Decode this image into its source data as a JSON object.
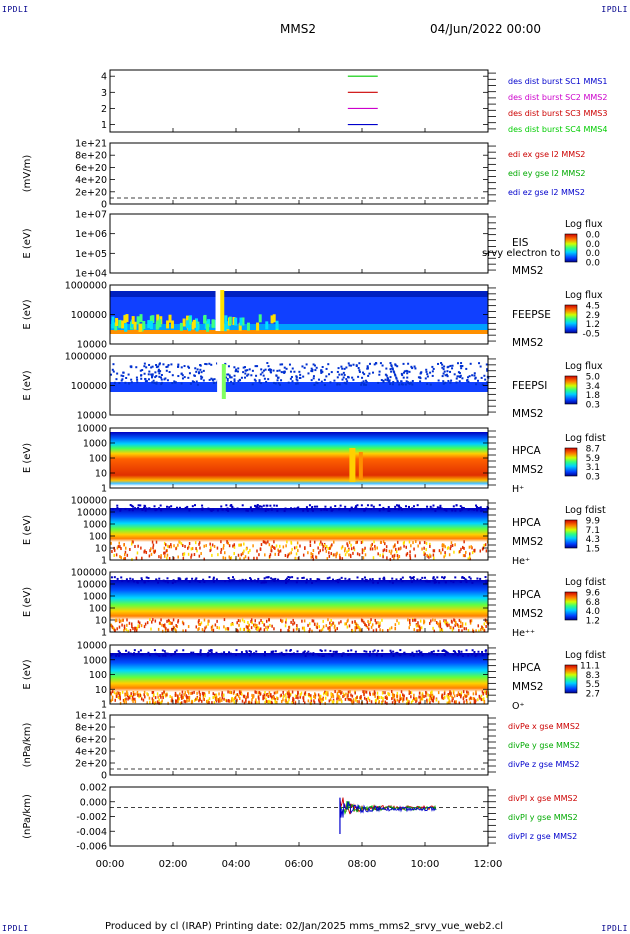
{
  "corners": {
    "tl": "IPDLI",
    "tr": "IPDLI",
    "bl": "IPDLI",
    "br": "IPDLI"
  },
  "header": {
    "spacecraft": "MMS2",
    "datetime": "04/Jun/2022 00:00"
  },
  "footer": {
    "text": "Produced by cl (IRAP)   Printing date: 02/Jan/2025   mms_mms2_srvy_vue_web2.cl"
  },
  "chart_data": {
    "type": "heatmap",
    "time_axis": {
      "ticks": [
        "00:00",
        "02:00",
        "04:00",
        "06:00",
        "08:00",
        "10:00",
        "12:00"
      ],
      "range_hours": [
        0,
        12
      ]
    },
    "panels": [
      {
        "id": "burst",
        "ylabel": "",
        "yticks": [
          "4",
          "3",
          "2",
          "1"
        ],
        "legend": [
          {
            "text": "des dist burst SC1 MMS1",
            "color": "#0000cc"
          },
          {
            "text": "des dist burst SC2 MMS2",
            "color": "#cc00cc"
          },
          {
            "text": "des dist burst SC3 MMS3",
            "color": "#cc0000"
          },
          {
            "text": "des dist burst SC4 MMS4",
            "color": "#00cc00"
          }
        ],
        "series": [
          {
            "y": 4,
            "x": [
              7.55,
              8.5
            ],
            "color": "#00cc00"
          },
          {
            "y": 3,
            "x": [
              7.55,
              8.5
            ],
            "color": "#cc0000"
          },
          {
            "y": 2,
            "x": [
              7.55,
              8.5
            ],
            "color": "#cc00cc"
          },
          {
            "y": 1,
            "x": [
              7.55,
              8.5
            ],
            "color": "#0000cc"
          }
        ]
      },
      {
        "id": "edi",
        "ylabel": "(mV/m)",
        "yticks": [
          "1e+21",
          "8e+20",
          "6e+20",
          "4e+20",
          "2e+20",
          "0"
        ],
        "legend": [
          {
            "text": "edi ex gse l2 MMS2",
            "color": "#cc0000"
          },
          {
            "text": "edi ey gse l2 MMS2",
            "color": "#00aa00"
          },
          {
            "text": "edi ez gse l2 MMS2",
            "color": "#0000cc"
          }
        ]
      },
      {
        "id": "eis",
        "ylabel": "E (eV)",
        "yticks": [
          "1e+07",
          "1e+06",
          "1e+05",
          "1e+04"
        ],
        "side_labels": [
          "EIS",
          "MMS2"
        ],
        "overlay_text": "srvy electron to",
        "colorbar": {
          "title": "Log flux",
          "ticks": [
            "0.0",
            "0.0",
            "0.0",
            "0.0"
          ]
        }
      },
      {
        "id": "feepse",
        "ylabel": "E (eV)",
        "yticks": [
          "1000000",
          "100000",
          "10000"
        ],
        "side_labels": [
          "FEEPSE",
          "MMS2"
        ],
        "colorbar": {
          "title": "Log flux",
          "ticks": [
            "4.5",
            "2.9",
            "1.2",
            "-0.5"
          ]
        }
      },
      {
        "id": "feepsi",
        "ylabel": "E (eV)",
        "yticks": [
          "1000000",
          "100000",
          "10000"
        ],
        "side_labels": [
          "FEEPSI",
          "MMS2"
        ],
        "colorbar": {
          "title": "Log flux",
          "ticks": [
            "5.0",
            "3.4",
            "1.8",
            "0.3"
          ]
        }
      },
      {
        "id": "hpca_h",
        "ylabel": "E (eV)",
        "yticks": [
          "10000",
          "1000",
          "100",
          "10",
          "1"
        ],
        "side_labels": [
          "HPCA",
          "MMS2",
          "H⁺"
        ],
        "colorbar": {
          "title": "Log fdist",
          "ticks": [
            "8.7",
            "5.9",
            "3.1",
            "0.3"
          ]
        }
      },
      {
        "id": "hpca_he",
        "ylabel": "E (eV)",
        "yticks": [
          "100000",
          "10000",
          "1000",
          "100",
          "10",
          "1"
        ],
        "side_labels": [
          "HPCA",
          "MMS2",
          "He⁺"
        ],
        "colorbar": {
          "title": "Log fdist",
          "ticks": [
            "9.9",
            "7.1",
            "4.3",
            "1.5"
          ]
        }
      },
      {
        "id": "hpca_hepp",
        "ylabel": "E (eV)",
        "yticks": [
          "100000",
          "10000",
          "1000",
          "100",
          "10",
          "1"
        ],
        "side_labels": [
          "HPCA",
          "MMS2",
          "He⁺⁺"
        ],
        "colorbar": {
          "title": "Log fdist",
          "ticks": [
            "9.6",
            "6.8",
            "4.0",
            "1.2"
          ]
        }
      },
      {
        "id": "hpca_o",
        "ylabel": "E (eV)",
        "yticks": [
          "10000",
          "1000",
          "100",
          "10",
          "1"
        ],
        "side_labels": [
          "HPCA",
          "MMS2",
          "O⁺"
        ],
        "colorbar": {
          "title": "Log fdist",
          "ticks": [
            "11.1",
            "8.3",
            "5.5",
            "2.7"
          ]
        }
      },
      {
        "id": "divpe",
        "ylabel": "(nPa/km)",
        "yticks": [
          "1e+21",
          "8e+20",
          "6e+20",
          "4e+20",
          "2e+20",
          "0"
        ],
        "legend": [
          {
            "text": "divPe x gse MMS2",
            "color": "#cc0000"
          },
          {
            "text": "divPe y gse MMS2",
            "color": "#00aa00"
          },
          {
            "text": "divPe z gse MMS2",
            "color": "#0000cc"
          }
        ]
      },
      {
        "id": "divpi",
        "ylabel": "(nPa/km)",
        "yticks": [
          "0.002",
          "0.000",
          "-0.002",
          "-0.004",
          "-0.006"
        ],
        "legend": [
          {
            "text": "divPI x gse MMS2",
            "color": "#cc0000"
          },
          {
            "text": "divPI y gse MMS2",
            "color": "#00aa00"
          },
          {
            "text": "divPI z gse MMS2",
            "color": "#0000cc"
          }
        ],
        "ylim": [
          -0.007,
          0.003
        ],
        "data_start_hours": 7.3,
        "data_end_hours": 10.35
      }
    ]
  }
}
